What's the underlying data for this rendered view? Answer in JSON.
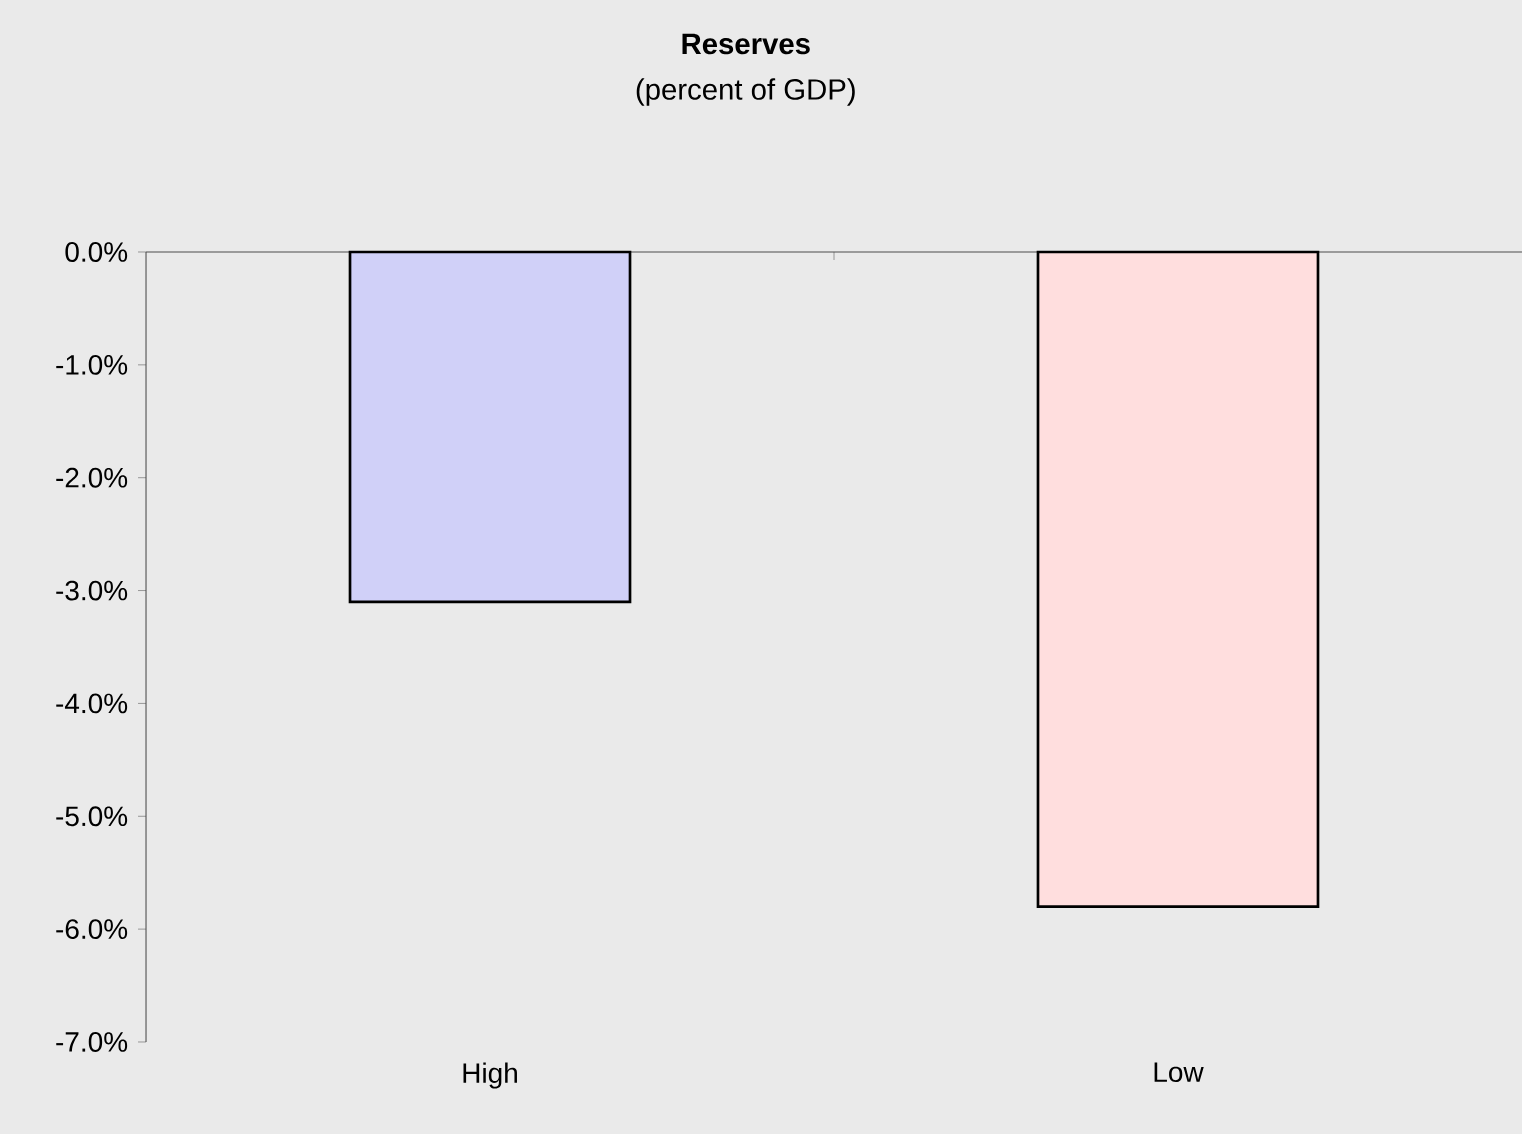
{
  "chart_data": {
    "type": "bar",
    "title": "Reserves",
    "subtitle": "(percent of GDP)",
    "categories": [
      "High",
      "Low"
    ],
    "values": [
      -3.1,
      -5.8
    ],
    "colors": [
      "#d0d0f8",
      "#ffdede"
    ],
    "ylim": [
      -7,
      0
    ],
    "yticks": [
      {
        "value": 0,
        "label": "0.0%"
      },
      {
        "value": -1,
        "label": "-1.0%"
      },
      {
        "value": -2,
        "label": "-2.0%"
      },
      {
        "value": -3,
        "label": "-3.0%"
      },
      {
        "value": -4,
        "label": "-4.0%"
      },
      {
        "value": -5,
        "label": "-5.0%"
      },
      {
        "value": -6,
        "label": "-6.0%"
      },
      {
        "value": -7,
        "label": "-7.0%"
      }
    ]
  }
}
